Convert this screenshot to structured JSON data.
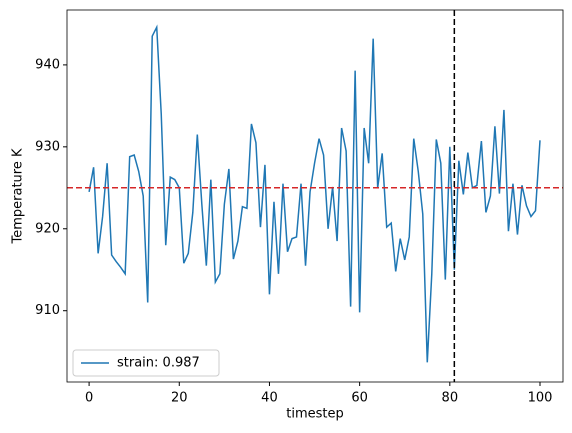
{
  "chart_data": {
    "type": "line",
    "xlabel": "timestep",
    "ylabel": "Temperature K",
    "x": [
      0,
      1,
      2,
      3,
      4,
      5,
      6,
      7,
      8,
      9,
      10,
      11,
      12,
      13,
      14,
      15,
      16,
      17,
      18,
      19,
      20,
      21,
      22,
      23,
      24,
      25,
      26,
      27,
      28,
      29,
      30,
      31,
      32,
      33,
      34,
      35,
      36,
      37,
      38,
      39,
      40,
      41,
      42,
      43,
      44,
      45,
      46,
      47,
      48,
      49,
      50,
      51,
      52,
      53,
      54,
      55,
      56,
      57,
      58,
      59,
      60,
      61,
      62,
      63,
      64,
      65,
      66,
      67,
      68,
      69,
      70,
      71,
      72,
      73,
      74,
      75,
      76,
      77,
      78,
      79,
      80,
      81,
      82,
      83,
      84,
      85,
      86,
      87,
      88,
      89,
      90,
      91,
      92,
      93,
      94,
      95,
      96,
      97,
      98,
      99,
      100
    ],
    "series": [
      {
        "name": "strain: 0.987",
        "color": "#1f77b4",
        "values": [
          924.5,
          927.5,
          917,
          921.5,
          928,
          916.8,
          916,
          915.3,
          914.5,
          928.8,
          929,
          927,
          924,
          911,
          943.5,
          944.6,
          934,
          918,
          926.3,
          926,
          925,
          915.8,
          917,
          922,
          931.5,
          923,
          915.5,
          926,
          913.5,
          914.5,
          923,
          927.3,
          916.3,
          918.5,
          922.7,
          922.5,
          932.8,
          930.5,
          920.2,
          927.8,
          912,
          923.3,
          914.5,
          925.5,
          917.2,
          918.8,
          919,
          925.5,
          915.5,
          924.5,
          928,
          931,
          929,
          920,
          925.1,
          918.5,
          932.3,
          929.5,
          910.5,
          939.3,
          909.8,
          932.3,
          928,
          943.2,
          925,
          929.2,
          920.2,
          920.7,
          914.8,
          918.8,
          916.2,
          919,
          931,
          927,
          921.8,
          903.7,
          914.5,
          930.9,
          928,
          913.8,
          930,
          915,
          928.3,
          924.2,
          929.3,
          925,
          925.3,
          930.7,
          922,
          924,
          932.5,
          924.3,
          934.5,
          919.7,
          925.5,
          919.3,
          925.3,
          922.8,
          921.5,
          922.2,
          930.8
        ]
      }
    ],
    "hline": {
      "value": 925,
      "color": "#d62728"
    },
    "vline": {
      "value": 81,
      "color": "#000000"
    },
    "xlim": [
      -4.9,
      105.1
    ],
    "ylim": [
      901.3,
      946.7
    ],
    "xticks": [
      0,
      20,
      40,
      60,
      80,
      100
    ],
    "yticks": [
      910,
      920,
      930,
      940
    ],
    "legend": "lower left"
  }
}
